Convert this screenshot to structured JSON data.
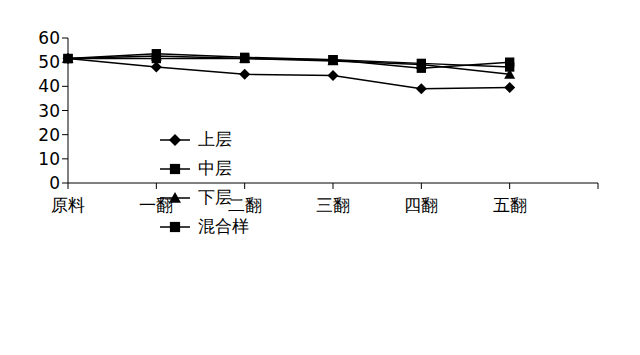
{
  "chart_data": {
    "type": "line",
    "categories": [
      "原料",
      "一翻",
      "二翻",
      "三翻",
      "四翻",
      "五翻",
      null
    ],
    "series": [
      {
        "name": "上层",
        "color": "#000000",
        "marker": "diamond",
        "values": [
          51.5,
          48,
          45,
          44.5,
          39,
          39.5,
          null
        ]
      },
      {
        "name": "中层",
        "color": "#000000",
        "marker": "square",
        "values": [
          51.5,
          53.5,
          52,
          51,
          49.5,
          48,
          null
        ]
      },
      {
        "name": "下层",
        "color": "#000000",
        "marker": "triangle",
        "values": [
          51.5,
          52.5,
          51.5,
          50.5,
          49,
          45,
          null
        ]
      },
      {
        "name": "混合样",
        "color": "#000000",
        "marker": "square",
        "values": [
          51.5,
          51.5,
          51.5,
          51,
          47.5,
          50,
          null
        ]
      }
    ],
    "ylim": [
      0,
      60
    ],
    "yticks": [
      0,
      10,
      20,
      30,
      40,
      50,
      60
    ],
    "grid": false,
    "legend": "left"
  }
}
